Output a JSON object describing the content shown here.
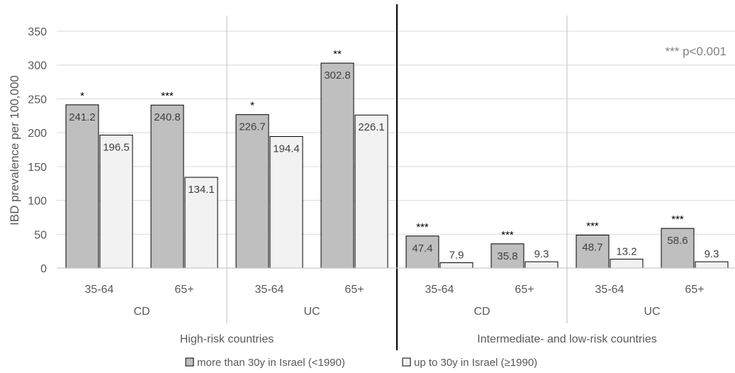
{
  "chart_data": {
    "type": "bar",
    "title": "",
    "ylabel": "IBD prevalence per 100,000",
    "ylim": [
      0,
      350
    ],
    "yticks": [
      0,
      50,
      100,
      150,
      200,
      250,
      300,
      350
    ],
    "grid": true,
    "legend_position": "bottom",
    "annotation": "*** p<0.001",
    "groups": [
      "High-risk countries",
      "Intermediate- and low-risk countries"
    ],
    "subgroups": [
      "CD",
      "UC",
      "CD",
      "UC"
    ],
    "categories": [
      "35-64",
      "65+",
      "35-64",
      "65+",
      "35-64",
      "65+",
      "35-64",
      "65+"
    ],
    "series": [
      {
        "name": "more than 30y in Israel (<1990)",
        "color": "#bfbfbf",
        "values": [
          241.2,
          240.8,
          226.7,
          302.8,
          47.4,
          35.8,
          48.7,
          58.6
        ],
        "labels": [
          "241.2",
          "240.8",
          "226.7",
          "302.8",
          "47.4",
          "35.8",
          "48.7",
          "58.6"
        ]
      },
      {
        "name": "up to 30y in Israel (≥1990)",
        "color": "#f2f2f2",
        "values": [
          196.5,
          134.1,
          194.4,
          226.1,
          7.9,
          9.3,
          13.2,
          9.3
        ],
        "labels": [
          "196.5",
          "134.1",
          "194.4",
          "226.1",
          "7.9",
          "9.3",
          "13.2",
          "9.3"
        ]
      }
    ],
    "significance": [
      "*",
      "***",
      "*",
      "**",
      "***",
      "***",
      "***",
      "***"
    ]
  }
}
